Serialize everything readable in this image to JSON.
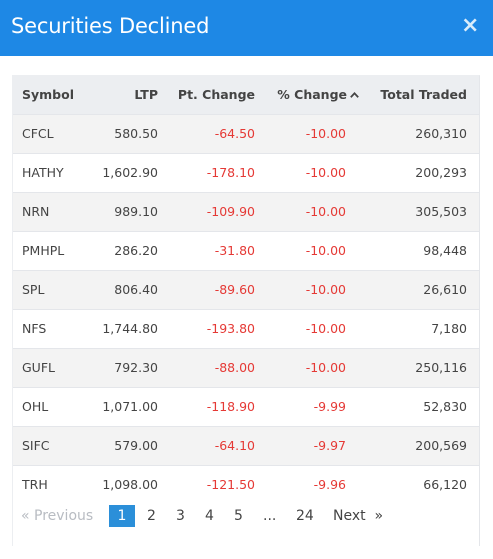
{
  "modal": {
    "title": "Securities Declined",
    "close_glyph": "×"
  },
  "table": {
    "columns": {
      "symbol": "Symbol",
      "ltp": "LTP",
      "pt_change": "Pt. Change",
      "pct_change": "% Change",
      "total_traded": "Total Traded"
    },
    "sort_icon": "caret-up-icon",
    "rows": [
      {
        "symbol": "CFCL",
        "ltp": "580.50",
        "pt_change": "-64.50",
        "pct_change": "-10.00",
        "total_traded": "260,310"
      },
      {
        "symbol": "HATHY",
        "ltp": "1,602.90",
        "pt_change": "-178.10",
        "pct_change": "-10.00",
        "total_traded": "200,293"
      },
      {
        "symbol": "NRN",
        "ltp": "989.10",
        "pt_change": "-109.90",
        "pct_change": "-10.00",
        "total_traded": "305,503"
      },
      {
        "symbol": "PMHPL",
        "ltp": "286.20",
        "pt_change": "-31.80",
        "pct_change": "-10.00",
        "total_traded": "98,448"
      },
      {
        "symbol": "SPL",
        "ltp": "806.40",
        "pt_change": "-89.60",
        "pct_change": "-10.00",
        "total_traded": "26,610"
      },
      {
        "symbol": "NFS",
        "ltp": "1,744.80",
        "pt_change": "-193.80",
        "pct_change": "-10.00",
        "total_traded": "7,180"
      },
      {
        "symbol": "GUFL",
        "ltp": "792.30",
        "pt_change": "-88.00",
        "pct_change": "-10.00",
        "total_traded": "250,116"
      },
      {
        "symbol": "OHL",
        "ltp": "1,071.00",
        "pt_change": "-118.90",
        "pct_change": "-9.99",
        "total_traded": "52,830"
      },
      {
        "symbol": "SIFC",
        "ltp": "579.00",
        "pt_change": "-64.10",
        "pct_change": "-9.97",
        "total_traded": "200,569"
      },
      {
        "symbol": "TRH",
        "ltp": "1,098.00",
        "pt_change": "-121.50",
        "pct_change": "-9.96",
        "total_traded": "66,120"
      }
    ]
  },
  "pagination": {
    "prev_label": "«  Previous",
    "pages": [
      "1",
      "2",
      "3",
      "4",
      "5"
    ],
    "ellipsis": "...",
    "last_page": "24",
    "next_label": "Next  »"
  },
  "colors": {
    "header_bg": "#1e88e5",
    "negative": "#e53935",
    "current_page": "#2b8fd9"
  }
}
